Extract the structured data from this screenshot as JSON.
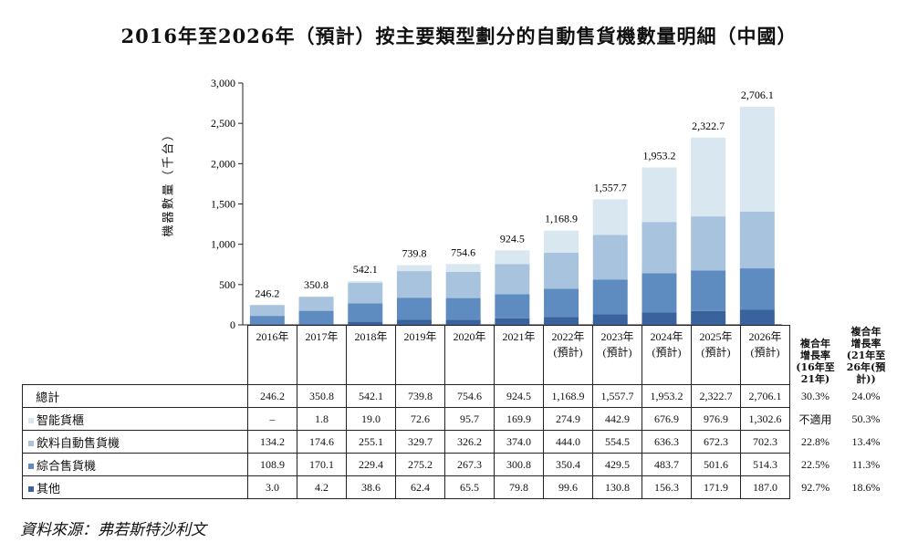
{
  "chart_data": {
    "type": "bar",
    "stacked": true,
    "title": "2016年至2026年（預計）按主要類型劃分的自動售貨機數量明細（中國）",
    "ylabel": "機器數量（千台）",
    "ylim": [
      0,
      3000
    ],
    "yticks": [
      "0",
      "500",
      "1,000",
      "1,500",
      "2,000",
      "2,500",
      "3,000"
    ],
    "ytick_values": [
      0,
      500,
      1000,
      1500,
      2000,
      2500,
      3000
    ],
    "categories": [
      "2016年",
      "2017年",
      "2018年",
      "2019年",
      "2020年",
      "2021年",
      "2022年\n(預計)",
      "2023年\n(預計)",
      "2024年\n(預計)",
      "2025年\n(預計)",
      "2026年\n(預計)"
    ],
    "category_lines": [
      [
        "2016年",
        ""
      ],
      [
        "2017年",
        ""
      ],
      [
        "2018年",
        ""
      ],
      [
        "2019年",
        ""
      ],
      [
        "2020年",
        ""
      ],
      [
        "2021年",
        ""
      ],
      [
        "2022年",
        "(預計)"
      ],
      [
        "2023年",
        "(預計)"
      ],
      [
        "2024年",
        "(預計)"
      ],
      [
        "2025年",
        "(預計)"
      ],
      [
        "2026年",
        "(預計)"
      ]
    ],
    "totals": [
      246.2,
      350.8,
      542.1,
      739.8,
      754.6,
      924.5,
      1168.9,
      1557.7,
      1953.2,
      2322.7,
      2706.1
    ],
    "total_labels": [
      "246.2",
      "350.8",
      "542.1",
      "739.8",
      "754.6",
      "924.5",
      "1,168.9",
      "1,557.7",
      "1,953.2",
      "2,322.7",
      "2,706.1"
    ],
    "total_row_label": "總計",
    "total_cagr": [
      "30.3%",
      "24.0%"
    ],
    "series": [
      {
        "name": "其他",
        "color": "#3a629d",
        "values": [
          3.0,
          4.2,
          38.6,
          62.4,
          65.5,
          79.8,
          99.6,
          130.8,
          156.3,
          171.9,
          187.0
        ],
        "labels": [
          "3.0",
          "4.2",
          "38.6",
          "62.4",
          "65.5",
          "79.8",
          "99.6",
          "130.8",
          "156.3",
          "171.9",
          "187.0"
        ],
        "cagr": [
          "92.7%",
          "18.6%"
        ]
      },
      {
        "name": "綜合售貨機",
        "color": "#5f8cc0",
        "values": [
          108.9,
          170.1,
          229.4,
          275.2,
          267.3,
          300.8,
          350.4,
          429.5,
          483.7,
          501.6,
          514.3
        ],
        "labels": [
          "108.9",
          "170.1",
          "229.4",
          "275.2",
          "267.3",
          "300.8",
          "350.4",
          "429.5",
          "483.7",
          "501.6",
          "514.3"
        ],
        "cagr": [
          "22.5%",
          "11.3%"
        ]
      },
      {
        "name": "飲料自動售貨機",
        "color": "#a7c3dd",
        "values": [
          134.2,
          174.6,
          255.1,
          329.7,
          326.2,
          374.0,
          444.0,
          554.5,
          636.3,
          672.3,
          702.3
        ],
        "labels": [
          "134.2",
          "174.6",
          "255.1",
          "329.7",
          "326.2",
          "374.0",
          "444.0",
          "554.5",
          "636.3",
          "672.3",
          "702.3"
        ],
        "cagr": [
          "22.8%",
          "13.4%"
        ]
      },
      {
        "name": "智能貨櫃",
        "color": "#d9e7f1",
        "values": [
          0,
          1.8,
          19.0,
          72.6,
          95.7,
          169.9,
          274.9,
          442.9,
          676.9,
          976.9,
          1302.6
        ],
        "labels": [
          "–",
          "1.8",
          "19.0",
          "72.6",
          "95.7",
          "169.9",
          "274.9",
          "442.9",
          "676.9",
          "976.9",
          "1,302.6"
        ],
        "cagr": [
          "不適用",
          "50.3%"
        ]
      }
    ],
    "cagr_headers": [
      [
        "複合年",
        "增長率",
        "(16年至",
        "21年)"
      ],
      [
        "複合年",
        "增長率",
        "(21年至",
        "26年(預計))"
      ]
    ],
    "legend": "table-rows",
    "grid": false
  },
  "source": "資料來源：弗若斯特沙利文"
}
